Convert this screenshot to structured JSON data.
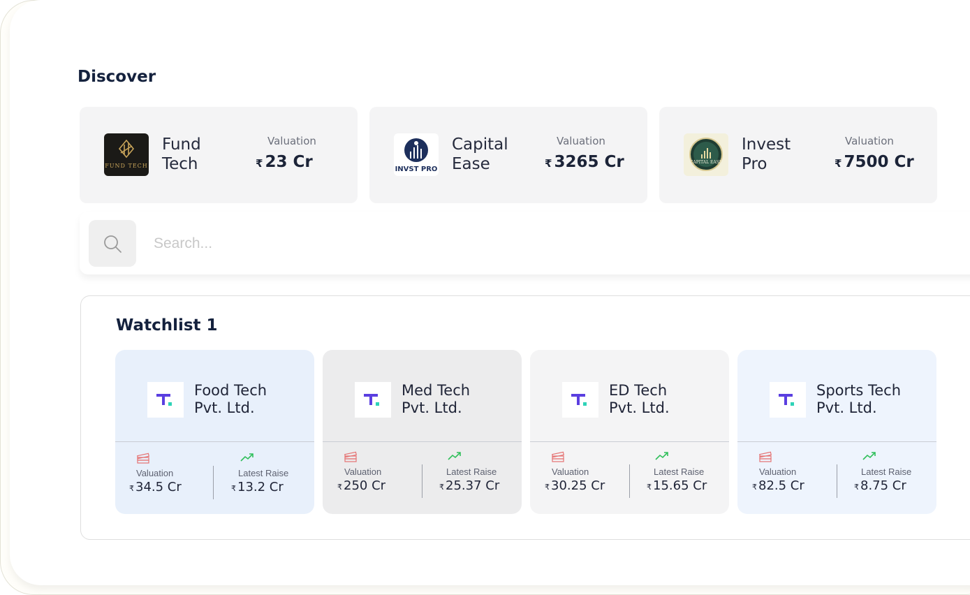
{
  "discover": {
    "title": "Discover",
    "cards": [
      {
        "name_line1": "Fund",
        "name_line2": "Tech",
        "valuation_label": "Valuation",
        "currency": "₹",
        "valuation": "23 Cr",
        "logo_text": "FUND TECH",
        "logo_icon": "fund-tech-logo"
      },
      {
        "name_line1": "Capital",
        "name_line2": "Ease",
        "valuation_label": "Valuation",
        "currency": "₹",
        "valuation": "3265 Cr",
        "logo_text": "INVST PRO",
        "logo_icon": "invst-pro-logo"
      },
      {
        "name_line1": "Invest",
        "name_line2": "Pro",
        "valuation_label": "Valuation",
        "currency": "₹",
        "valuation": "7500 Cr",
        "logo_text": "CAPITAL EASE",
        "logo_icon": "capital-ease-logo"
      }
    ]
  },
  "search": {
    "placeholder": "Search...",
    "icon": "search-icon"
  },
  "watchlist": {
    "title": "Watchlist 1",
    "cards": [
      {
        "name_line1": "Food Tech",
        "name_line2": "Pvt. Ltd.",
        "valuation_label": "Valuation",
        "raise_label": "Latest Raise",
        "currency": "₹",
        "valuation": "34.5 Cr",
        "raise": "13.2 Cr",
        "bg": "#e8f0fb"
      },
      {
        "name_line1": "Med Tech",
        "name_line2": "Pvt. Ltd.",
        "valuation_label": "Valuation",
        "raise_label": "Latest Raise",
        "currency": "₹",
        "valuation": "250 Cr",
        "raise": "25.37 Cr",
        "bg": "#ececed"
      },
      {
        "name_line1": "ED Tech",
        "name_line2": "Pvt. Ltd.",
        "valuation_label": "Valuation",
        "raise_label": "Latest Raise",
        "currency": "₹",
        "valuation": "30.25 Cr",
        "raise": "15.65 Cr",
        "bg": "#f4f4f5"
      },
      {
        "name_line1": "Sports Tech",
        "name_line2": "Pvt. Ltd.",
        "valuation_label": "Valuation",
        "raise_label": "Latest Raise",
        "currency": "₹",
        "valuation": "82.5 Cr",
        "raise": "8.75 Cr",
        "bg": "#eef4fd"
      }
    ]
  },
  "colors": {
    "accent_purple": "#5b3fe0",
    "accent_teal": "#2ed3b7",
    "money_icon": "#e57373",
    "trend_icon": "#2fbf5a",
    "heading": "#14213d"
  }
}
